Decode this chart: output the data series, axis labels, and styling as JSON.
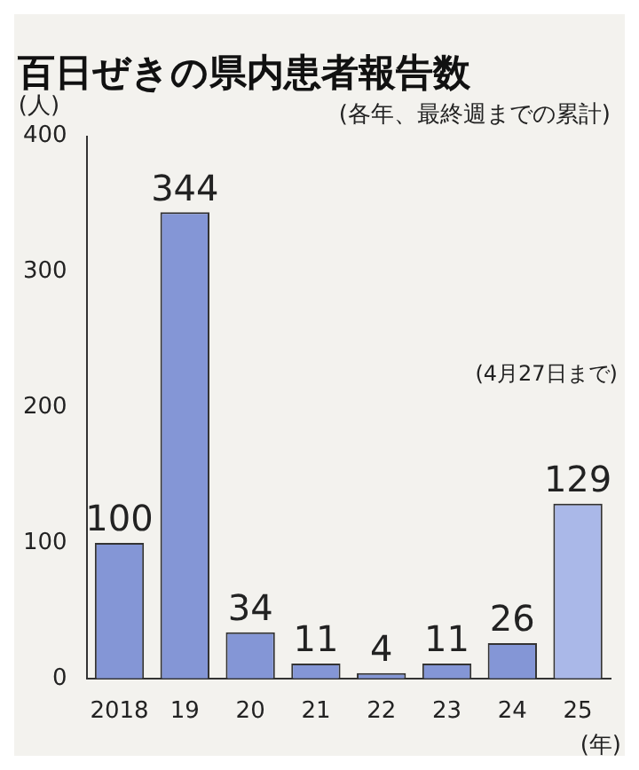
{
  "chart_data": {
    "type": "bar",
    "title": "百日ぜきの県内患者報告数",
    "subtitle": "(各年、最終週までの累計)",
    "ylabel": "(人)",
    "xlabel": "(年)",
    "categories": [
      "2018",
      "19",
      "20",
      "21",
      "22",
      "23",
      "24",
      "25"
    ],
    "values": [
      100,
      344,
      34,
      11,
      4,
      11,
      26,
      129
    ],
    "colors": [
      "#8496d6",
      "#8496d6",
      "#8496d6",
      "#8496d6",
      "#8496d6",
      "#8496d6",
      "#8496d6",
      "#aab8e8"
    ],
    "ylim": [
      0,
      400
    ],
    "yticks": [
      0,
      100,
      200,
      300,
      400
    ],
    "grid": false,
    "legend": false,
    "data_labels": true,
    "annotations": [
      "(4月27日まで)"
    ]
  }
}
